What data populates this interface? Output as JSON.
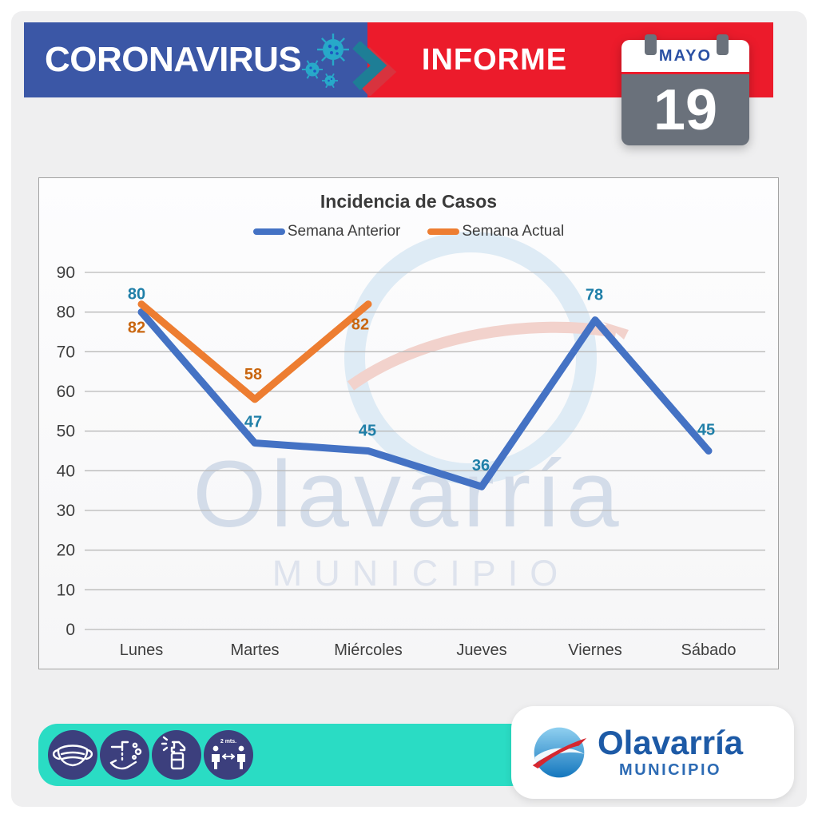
{
  "header": {
    "title": "CORONAVIRUS",
    "report_label": "INFORME",
    "calendar": {
      "month": "MAYO",
      "day": "19"
    }
  },
  "chart_data": {
    "type": "line",
    "title": "Incidencia de Casos",
    "categories": [
      "Lunes",
      "Martes",
      "Miércoles",
      "Jueves",
      "Viernes",
      "Sábado"
    ],
    "series": [
      {
        "name": "Semana Anterior",
        "color": "#4472C4",
        "label_color": "#1F7FA8",
        "values": [
          80,
          47,
          45,
          36,
          78,
          45
        ]
      },
      {
        "name": "Semana Actual",
        "color": "#ED7D31",
        "label_color": "#C9660F",
        "values": [
          82,
          58,
          82,
          null,
          null,
          null
        ]
      }
    ],
    "ylim": [
      0,
      90
    ],
    "ytick_step": 10,
    "grid": true,
    "legend_position": "top"
  },
  "watermark": {
    "line1": "Olavarría",
    "line2": "MUNICIPIO"
  },
  "footer": {
    "icons": [
      "face-mask",
      "hand-washing",
      "disinfectant-spray",
      "social-distance"
    ],
    "distance_label": "2 mts.",
    "logo": {
      "name": "Olavarría",
      "subtitle": "MUNICIPIO"
    }
  },
  "colors": {
    "header_blue": "#3B57A6",
    "header_red": "#EC1B2B",
    "chevron_teal": "#1E7E96",
    "chevron_red": "#D8333E",
    "footer_teal": "#2ADCC4",
    "icon_circle": "#3C3F7D",
    "calendar_gray": "#6A717B",
    "logo_blue": "#1D5AA6",
    "axis_text": "#3E3E3E",
    "gridline": "#B9B9B9"
  }
}
